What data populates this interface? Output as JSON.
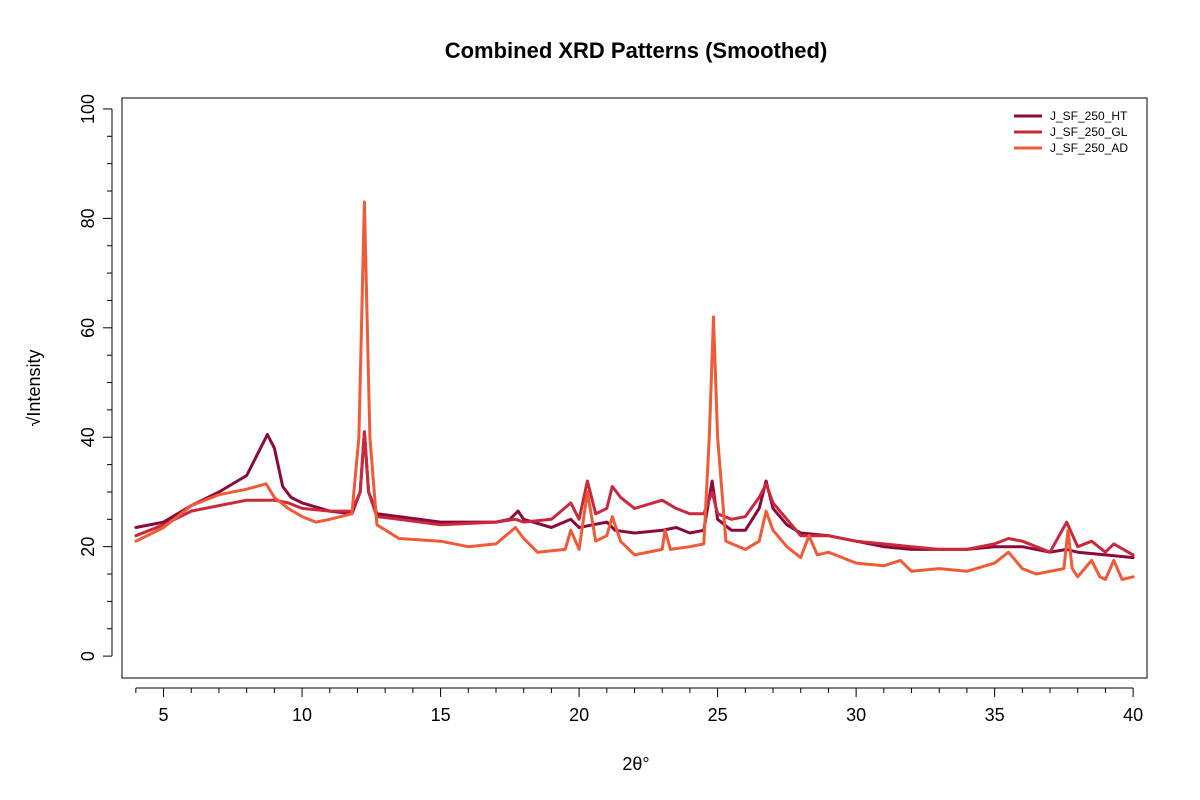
{
  "chart_data": {
    "type": "line",
    "title": "Combined XRD Patterns (Smoothed)",
    "xlabel": "2θ°",
    "ylabel": "√Intensity",
    "xlim": [
      3.5,
      40.5
    ],
    "ylim": [
      -4,
      102
    ],
    "x_ticks": [
      5,
      10,
      15,
      20,
      25,
      30,
      35,
      40
    ],
    "y_ticks": [
      0,
      20,
      40,
      60,
      80,
      100
    ],
    "grid": false,
    "legend_position": "top-right",
    "series": [
      {
        "name": "J_SF_250_HT",
        "color": "#8b0a3c",
        "points": [
          [
            4,
            23.5
          ],
          [
            5,
            24.5
          ],
          [
            6,
            27.5
          ],
          [
            7,
            30
          ],
          [
            8,
            33
          ],
          [
            8.5,
            38
          ],
          [
            8.75,
            40.5
          ],
          [
            9,
            38
          ],
          [
            9.3,
            31
          ],
          [
            9.6,
            29
          ],
          [
            10,
            28
          ],
          [
            11,
            26.5
          ],
          [
            11.8,
            26
          ],
          [
            12.1,
            30
          ],
          [
            12.25,
            41
          ],
          [
            12.4,
            30
          ],
          [
            12.7,
            26
          ],
          [
            13.5,
            25.5
          ],
          [
            15,
            24.5
          ],
          [
            17,
            24.5
          ],
          [
            17.5,
            25
          ],
          [
            17.8,
            26.5
          ],
          [
            18,
            25
          ],
          [
            19,
            23.5
          ],
          [
            19.7,
            25
          ],
          [
            20,
            23.5
          ],
          [
            20.5,
            24
          ],
          [
            21,
            24.5
          ],
          [
            21.3,
            23
          ],
          [
            22,
            22.5
          ],
          [
            23,
            23
          ],
          [
            23.5,
            23.5
          ],
          [
            24,
            22.5
          ],
          [
            24.5,
            23
          ],
          [
            24.8,
            32
          ],
          [
            25,
            25
          ],
          [
            25.5,
            23
          ],
          [
            26,
            23
          ],
          [
            26.5,
            27
          ],
          [
            26.75,
            32
          ],
          [
            27,
            27
          ],
          [
            27.5,
            24
          ],
          [
            28,
            22.5
          ],
          [
            29,
            22
          ],
          [
            30,
            21
          ],
          [
            31,
            20
          ],
          [
            32,
            19.5
          ],
          [
            33,
            19.5
          ],
          [
            34,
            19.5
          ],
          [
            35,
            20
          ],
          [
            36,
            20
          ],
          [
            37,
            19
          ],
          [
            37.6,
            19.5
          ],
          [
            38,
            19
          ],
          [
            39,
            18.5
          ],
          [
            40,
            18
          ]
        ]
      },
      {
        "name": "J_SF_250_GL",
        "color": "#c8293d",
        "points": [
          [
            4,
            22
          ],
          [
            5,
            24
          ],
          [
            6,
            26.5
          ],
          [
            7,
            27.5
          ],
          [
            8,
            28.5
          ],
          [
            9,
            28.5
          ],
          [
            9.5,
            28
          ],
          [
            10,
            27
          ],
          [
            11,
            26.5
          ],
          [
            11.8,
            26.5
          ],
          [
            12.1,
            30
          ],
          [
            12.25,
            41
          ],
          [
            12.4,
            30
          ],
          [
            12.7,
            25.5
          ],
          [
            13.5,
            25
          ],
          [
            15,
            24
          ],
          [
            17,
            24.5
          ],
          [
            17.7,
            25
          ],
          [
            18,
            24.5
          ],
          [
            19,
            25
          ],
          [
            19.7,
            28
          ],
          [
            20,
            25
          ],
          [
            20.3,
            32
          ],
          [
            20.6,
            26
          ],
          [
            21,
            27
          ],
          [
            21.2,
            31
          ],
          [
            21.5,
            29
          ],
          [
            22,
            27
          ],
          [
            23,
            28.5
          ],
          [
            23.5,
            27
          ],
          [
            24,
            26
          ],
          [
            24.5,
            26
          ],
          [
            24.8,
            30
          ],
          [
            25,
            26
          ],
          [
            25.5,
            25
          ],
          [
            26,
            25.5
          ],
          [
            26.5,
            29
          ],
          [
            26.75,
            31.5
          ],
          [
            27,
            28
          ],
          [
            27.5,
            25
          ],
          [
            28,
            22
          ],
          [
            29,
            22
          ],
          [
            30,
            21
          ],
          [
            31,
            20.5
          ],
          [
            32,
            20
          ],
          [
            33,
            19.5
          ],
          [
            34,
            19.5
          ],
          [
            35,
            20.5
          ],
          [
            35.5,
            21.5
          ],
          [
            36,
            21
          ],
          [
            37,
            19
          ],
          [
            37.6,
            24.5
          ],
          [
            38,
            20
          ],
          [
            38.5,
            21
          ],
          [
            39,
            19
          ],
          [
            39.3,
            20.5
          ],
          [
            40,
            18.5
          ]
        ]
      },
      {
        "name": "J_SF_250_AD",
        "color": "#f05a37",
        "points": [
          [
            4,
            21
          ],
          [
            5,
            23.5
          ],
          [
            6,
            27.5
          ],
          [
            7,
            29.5
          ],
          [
            8,
            30.5
          ],
          [
            8.7,
            31.5
          ],
          [
            9,
            29
          ],
          [
            9.5,
            27
          ],
          [
            10,
            25.5
          ],
          [
            10.5,
            24.5
          ],
          [
            11,
            25
          ],
          [
            11.8,
            26
          ],
          [
            12.05,
            40
          ],
          [
            12.25,
            83
          ],
          [
            12.45,
            40
          ],
          [
            12.7,
            24
          ],
          [
            13.5,
            21.5
          ],
          [
            15,
            21
          ],
          [
            16,
            20
          ],
          [
            17,
            20.5
          ],
          [
            17.7,
            23.5
          ],
          [
            18,
            21.5
          ],
          [
            18.5,
            19
          ],
          [
            19.5,
            19.5
          ],
          [
            19.7,
            23
          ],
          [
            20,
            19.5
          ],
          [
            20.3,
            30
          ],
          [
            20.6,
            21
          ],
          [
            21,
            22
          ],
          [
            21.2,
            25.5
          ],
          [
            21.5,
            21
          ],
          [
            22,
            18.5
          ],
          [
            23,
            19.5
          ],
          [
            23.1,
            23
          ],
          [
            23.3,
            19.5
          ],
          [
            24,
            20
          ],
          [
            24.5,
            20.5
          ],
          [
            24.7,
            40
          ],
          [
            24.85,
            62
          ],
          [
            25,
            40
          ],
          [
            25.3,
            21
          ],
          [
            26,
            19.5
          ],
          [
            26.5,
            21
          ],
          [
            26.75,
            26.5
          ],
          [
            27,
            23
          ],
          [
            27.5,
            20
          ],
          [
            28,
            18
          ],
          [
            28.3,
            22
          ],
          [
            28.6,
            18.5
          ],
          [
            29,
            19
          ],
          [
            29.5,
            18
          ],
          [
            30,
            17
          ],
          [
            31,
            16.5
          ],
          [
            31.6,
            17.5
          ],
          [
            32,
            15.5
          ],
          [
            33,
            16
          ],
          [
            34,
            15.5
          ],
          [
            35,
            17
          ],
          [
            35.5,
            19
          ],
          [
            36,
            16
          ],
          [
            36.5,
            15
          ],
          [
            37,
            15.5
          ],
          [
            37.5,
            16
          ],
          [
            37.65,
            23
          ],
          [
            37.8,
            16
          ],
          [
            38,
            14.5
          ],
          [
            38.5,
            17.5
          ],
          [
            38.8,
            14.5
          ],
          [
            39,
            14
          ],
          [
            39.3,
            17.5
          ],
          [
            39.6,
            14
          ],
          [
            40,
            14.5
          ]
        ]
      }
    ]
  }
}
